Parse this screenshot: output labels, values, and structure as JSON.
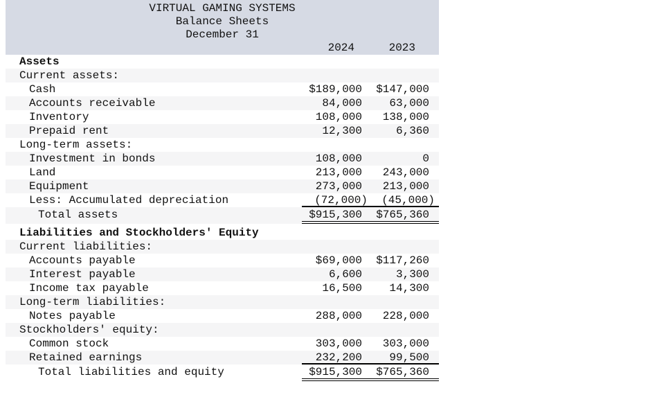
{
  "header": {
    "company": "VIRTUAL GAMING SYSTEMS",
    "report_title": "Balance Sheets",
    "report_date": "December 31",
    "col_years": [
      "2024",
      "2023"
    ]
  },
  "colors": {
    "header_bg": "#d6dae4",
    "stripe_bg": "#f5f5f6",
    "text": "#111111"
  },
  "rows": [
    {
      "label": "Assets",
      "type": "section-title",
      "bold": true,
      "indent": 0,
      "v2024": "",
      "v2023": "",
      "underline": "none"
    },
    {
      "label": "Current assets:",
      "type": "subsection",
      "bold": false,
      "indent": 0,
      "v2024": "",
      "v2023": "",
      "underline": "none"
    },
    {
      "label": "Cash",
      "type": "item",
      "bold": false,
      "indent": 1,
      "v2024": "$189,000",
      "v2023": "$147,000",
      "underline": "none"
    },
    {
      "label": "Accounts receivable",
      "type": "item",
      "bold": false,
      "indent": 1,
      "v2024": "84,000",
      "v2023": "63,000",
      "underline": "none"
    },
    {
      "label": "Inventory",
      "type": "item",
      "bold": false,
      "indent": 1,
      "v2024": "108,000",
      "v2023": "138,000",
      "underline": "none"
    },
    {
      "label": "Prepaid rent",
      "type": "item",
      "bold": false,
      "indent": 1,
      "v2024": "12,300",
      "v2023": "6,360",
      "underline": "none"
    },
    {
      "label": "Long-term assets:",
      "type": "subsection",
      "bold": false,
      "indent": 0,
      "v2024": "",
      "v2023": "",
      "underline": "none"
    },
    {
      "label": "Investment in bonds",
      "type": "item",
      "bold": false,
      "indent": 1,
      "v2024": "108,000",
      "v2023": "0",
      "underline": "none"
    },
    {
      "label": "Land",
      "type": "item",
      "bold": false,
      "indent": 1,
      "v2024": "213,000",
      "v2023": "243,000",
      "underline": "none"
    },
    {
      "label": "Equipment",
      "type": "item",
      "bold": false,
      "indent": 1,
      "v2024": "273,000",
      "v2023": "213,000",
      "underline": "none"
    },
    {
      "label": "Less: Accumulated depreciation",
      "type": "item",
      "bold": false,
      "indent": 1,
      "v2024": "(72,000)",
      "v2023": "(45,000)",
      "underline": "single"
    },
    {
      "label": "Total assets",
      "type": "total",
      "bold": false,
      "indent": 2,
      "v2024": "$915,300",
      "v2023": "$765,360",
      "underline": "double"
    },
    {
      "label": "Liabilities and Stockholders' Equity",
      "type": "section-title",
      "bold": true,
      "indent": 0,
      "v2024": "",
      "v2023": "",
      "underline": "none"
    },
    {
      "label": "Current liabilities:",
      "type": "subsection",
      "bold": false,
      "indent": 0,
      "v2024": "",
      "v2023": "",
      "underline": "none"
    },
    {
      "label": "Accounts payable",
      "type": "item",
      "bold": false,
      "indent": 1,
      "v2024": "$69,000",
      "v2023": "$117,260",
      "underline": "none"
    },
    {
      "label": "Interest payable",
      "type": "item",
      "bold": false,
      "indent": 1,
      "v2024": "6,600",
      "v2023": "3,300",
      "underline": "none"
    },
    {
      "label": "Income tax payable",
      "type": "item",
      "bold": false,
      "indent": 1,
      "v2024": "16,500",
      "v2023": "14,300",
      "underline": "none"
    },
    {
      "label": "Long-term liabilities:",
      "type": "subsection",
      "bold": false,
      "indent": 0,
      "v2024": "",
      "v2023": "",
      "underline": "none"
    },
    {
      "label": "Notes payable",
      "type": "item",
      "bold": false,
      "indent": 1,
      "v2024": "288,000",
      "v2023": "228,000",
      "underline": "none"
    },
    {
      "label": "Stockholders' equity:",
      "type": "subsection",
      "bold": false,
      "indent": 0,
      "v2024": "",
      "v2023": "",
      "underline": "none"
    },
    {
      "label": "Common stock",
      "type": "item",
      "bold": false,
      "indent": 1,
      "v2024": "303,000",
      "v2023": "303,000",
      "underline": "none"
    },
    {
      "label": "Retained earnings",
      "type": "item",
      "bold": false,
      "indent": 1,
      "v2024": "232,200",
      "v2023": "99,500",
      "underline": "single"
    },
    {
      "label": "Total liabilities and equity",
      "type": "total",
      "bold": false,
      "indent": 2,
      "v2024": "$915,300",
      "v2023": "$765,360",
      "underline": "double"
    }
  ]
}
